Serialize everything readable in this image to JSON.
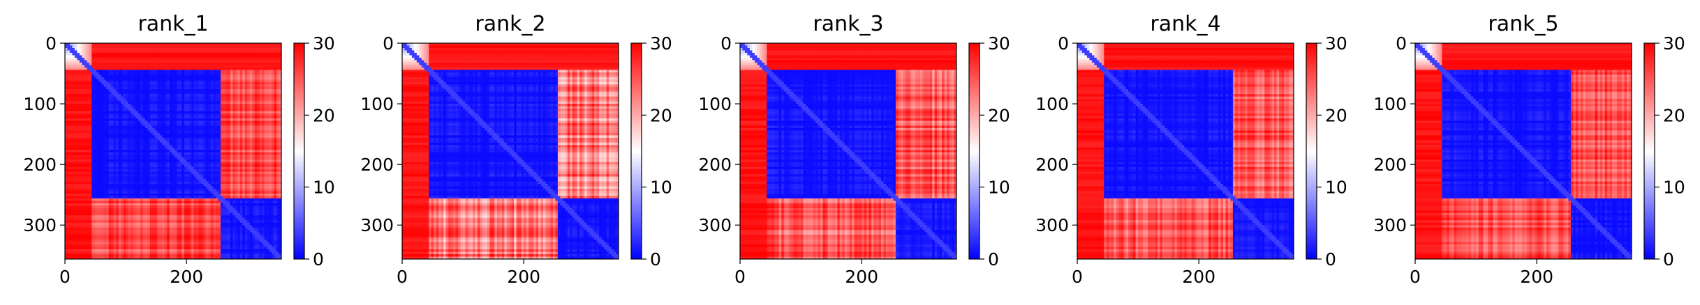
{
  "chart_data": [
    {
      "type": "heatmap",
      "title": "rank_1",
      "n": 356,
      "blocks": [
        0,
        45,
        255,
        356
      ],
      "offdiag_low": 0.72,
      "x_ticks": [
        0,
        200
      ],
      "y_ticks": [
        0,
        100,
        200,
        300
      ],
      "colorbar": {
        "ticks": [
          0,
          10,
          20,
          30
        ],
        "range": [
          0,
          30
        ],
        "colormap": "bwr"
      }
    },
    {
      "type": "heatmap",
      "title": "rank_2",
      "n": 356,
      "blocks": [
        0,
        45,
        255,
        356
      ],
      "offdiag_low": 0.55,
      "x_ticks": [
        0,
        200
      ],
      "y_ticks": [
        0,
        100,
        200,
        300
      ],
      "colorbar": {
        "ticks": [
          0,
          10,
          20,
          30
        ],
        "range": [
          0,
          30
        ],
        "colormap": "bwr"
      }
    },
    {
      "type": "heatmap",
      "title": "rank_3",
      "n": 356,
      "blocks": [
        0,
        45,
        255,
        356
      ],
      "offdiag_low": 0.64,
      "x_ticks": [
        0,
        200
      ],
      "y_ticks": [
        0,
        100,
        200,
        300
      ],
      "colorbar": {
        "ticks": [
          0,
          10,
          20,
          30
        ],
        "range": [
          0,
          30
        ],
        "colormap": "bwr"
      }
    },
    {
      "type": "heatmap",
      "title": "rank_4",
      "n": 356,
      "blocks": [
        0,
        45,
        255,
        356
      ],
      "offdiag_low": 0.65,
      "x_ticks": [
        0,
        200
      ],
      "y_ticks": [
        0,
        100,
        200,
        300
      ],
      "colorbar": {
        "ticks": [
          0,
          10,
          20,
          30
        ],
        "range": [
          0,
          30
        ],
        "colormap": "bwr"
      }
    },
    {
      "type": "heatmap",
      "title": "rank_5",
      "n": 356,
      "blocks": [
        0,
        45,
        255,
        356
      ],
      "offdiag_low": 0.7,
      "x_ticks": [
        0,
        200
      ],
      "y_ticks": [
        0,
        100,
        200,
        300
      ],
      "colorbar": {
        "ticks": [
          0,
          10,
          20,
          30
        ],
        "range": [
          0,
          30
        ],
        "colormap": "bwr"
      }
    }
  ]
}
